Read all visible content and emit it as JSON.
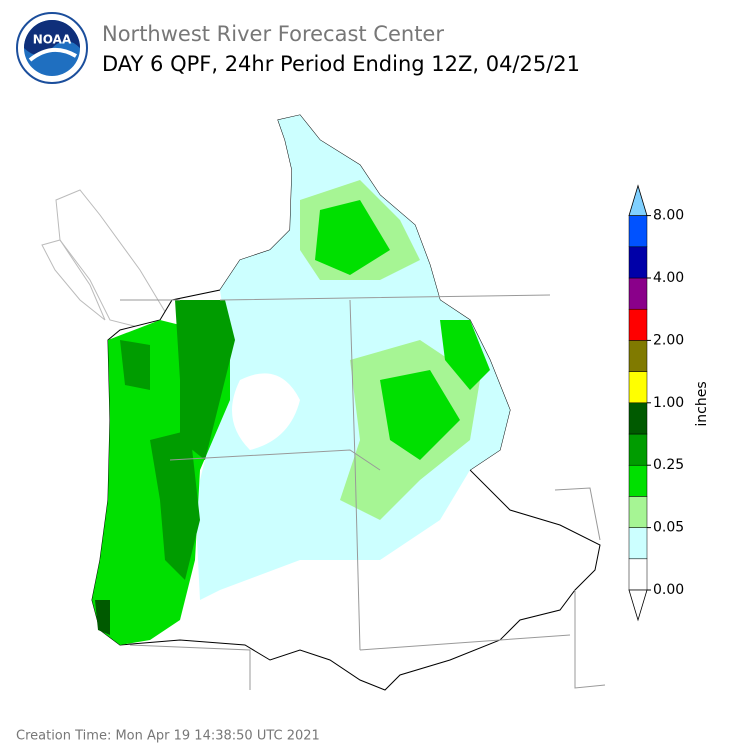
{
  "header": {
    "logo_text": "NOAA",
    "title": "Northwest River Forecast Center",
    "subtitle": "DAY 6 QPF, 24hr Period Ending 12Z, 04/25/21"
  },
  "colorbar": {
    "label": "inches",
    "ticks": [
      {
        "value": 0,
        "label": "0.00"
      },
      {
        "value": 0.05,
        "label": "0.05"
      },
      {
        "value": 0.25,
        "label": "0.25"
      },
      {
        "value": 1,
        "label": "1.00"
      },
      {
        "value": 2,
        "label": "2.00"
      },
      {
        "value": 4,
        "label": "4.00"
      },
      {
        "value": 8,
        "label": "8.00"
      }
    ],
    "colors": [
      "#ffffff",
      "#ccffff",
      "#a6f594",
      "#00e000",
      "#009c00",
      "#005a00",
      "#ffff00",
      "#807a00",
      "#ff0000",
      "#8a008a",
      "#0000a8",
      "#0052ff"
    ],
    "under_color": "#ffffff",
    "over_color": "#80d0ff"
  },
  "footer": {
    "creation_time": "Creation Time: Mon Apr 19 14:38:50 UTC 2021"
  }
}
